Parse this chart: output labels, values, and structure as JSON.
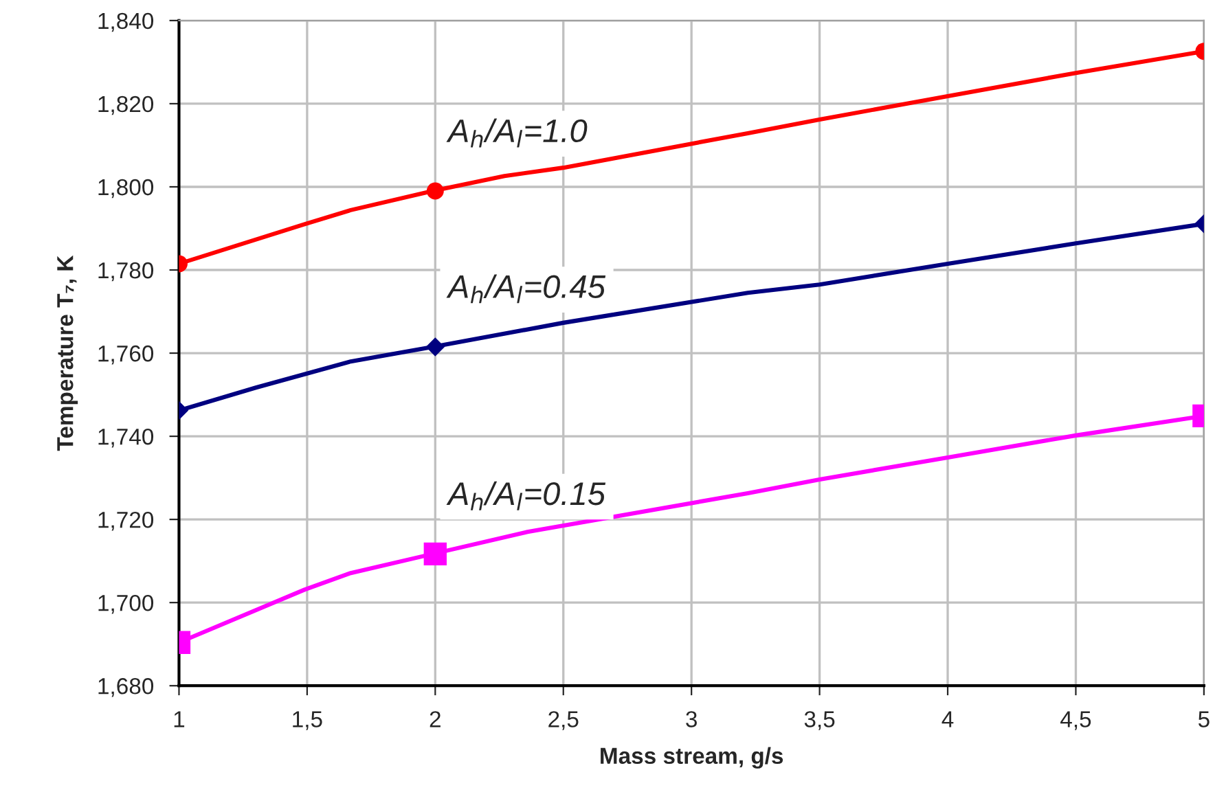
{
  "chart_data": {
    "type": "line",
    "xlabel": "Mass stream, g/s",
    "ylabel": "Temperature T₇, K",
    "series": [
      {
        "name": "A$_{h}$/A$_{l}$=1.0",
        "color": "#ff0000",
        "marker": "none",
        "x": [
          1,
          1.49,
          1.67,
          1.99,
          2.27,
          2.5,
          3.22,
          3.5,
          4.0,
          4.5,
          5
        ],
        "values": [
          1781.5,
          1791,
          1794.4,
          1799,
          1802.6,
          1804.6,
          1812.9,
          1816.2,
          1821.8,
          1827.4,
          1832.6
        ]
      },
      {
        "type": "scatter",
        "color": "#ff0000",
        "marker": "circle",
        "x": [
          1,
          2,
          5
        ],
        "values": [
          1781.5,
          1799,
          1832.6
        ]
      },
      {
        "name": "A$_{h}$/A$_{l}$=0.45",
        "color": "#000080",
        "marker": "none",
        "x": [
          1,
          1.3,
          1.67,
          1.99,
          2.5,
          3.22,
          3.5,
          4.0,
          4.5,
          5
        ],
        "values": [
          1746.2,
          1751.7,
          1758,
          1761.5,
          1767.3,
          1774.5,
          1776.5,
          1781.5,
          1786.4,
          1791.1
        ]
      },
      {
        "type": "scatter",
        "color": "#000080",
        "marker": "diamond",
        "x": [
          1,
          2,
          5
        ],
        "values": [
          1746.2,
          1761.5,
          1791.1
        ]
      },
      {
        "name": "A$_{h}$/A$_{l}$=0.15",
        "color": "#ff00ff",
        "marker": "none",
        "x": [
          1,
          1.49,
          1.67,
          1.99,
          2.36,
          3.22,
          3.5,
          4.0,
          4.5,
          5
        ],
        "values": [
          1690.4,
          1703.1,
          1707.1,
          1711.7,
          1717,
          1726.3,
          1729.6,
          1734.9,
          1740.2,
          1744.9
        ]
      },
      {
        "type": "scatter",
        "color": "#ff00ff",
        "marker": "square",
        "x": [
          1,
          2,
          5
        ],
        "values": [
          1690.4,
          1711.7,
          1744.9
        ]
      }
    ],
    "xlim": [
      1,
      5
    ],
    "ylim": [
      1680,
      1840
    ],
    "xticks": [
      1,
      {
        "value": 1.5,
        "label": "1,5"
      },
      2,
      {
        "value": 2.5,
        "label": "2,5"
      },
      3,
      {
        "value": 3.5,
        "label": "3,5"
      },
      4,
      {
        "value": 4.5,
        "label": "4,5"
      },
      5
    ],
    "yticks": [
      {
        "value": 1680,
        "label": "1,680"
      },
      {
        "value": 1700,
        "label": "1,700"
      },
      {
        "value": 1720,
        "label": "1,720"
      },
      {
        "value": 1740,
        "label": "1,740"
      },
      {
        "value": 1760,
        "label": "1,760"
      },
      {
        "value": 1780,
        "label": "1,780"
      },
      {
        "value": 1800,
        "label": "1,800"
      },
      {
        "value": 1820,
        "label": "1,820"
      },
      {
        "value": 1840,
        "label": "1,840"
      }
    ],
    "grid": true,
    "legend": false,
    "line_style": "solid"
  }
}
